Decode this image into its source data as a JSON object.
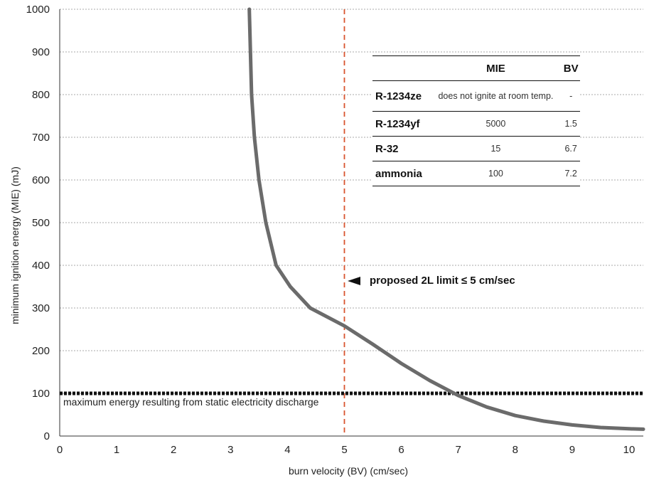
{
  "chart_data": {
    "type": "line",
    "title": "",
    "xlabel": "burn velocity (BV) (cm/sec)",
    "ylabel": "minimum ignition energy (MIE) (mJ)",
    "xlim": [
      0,
      10.25
    ],
    "ylim": [
      0,
      1000
    ],
    "x_ticks": [
      "0",
      "1",
      "2",
      "3",
      "4",
      "5",
      "6",
      "7",
      "8",
      "9",
      "10"
    ],
    "y_ticks": [
      "0",
      "100",
      "200",
      "300",
      "400",
      "500",
      "600",
      "700",
      "800",
      "900",
      "1000"
    ],
    "grid": "horizontal dotted",
    "series": [
      {
        "color": "#6b6b6b",
        "points": [
          [
            3.33,
            1000
          ],
          [
            3.35,
            900
          ],
          [
            3.37,
            800
          ],
          [
            3.42,
            700
          ],
          [
            3.5,
            600
          ],
          [
            3.62,
            500
          ],
          [
            3.8,
            400
          ],
          [
            4.05,
            350
          ],
          [
            4.4,
            300
          ],
          [
            5.0,
            258
          ],
          [
            5.5,
            215
          ],
          [
            6.0,
            170
          ],
          [
            6.5,
            130
          ],
          [
            7.0,
            95
          ],
          [
            7.5,
            68
          ],
          [
            8.0,
            48
          ],
          [
            8.5,
            35
          ],
          [
            9.0,
            26
          ],
          [
            9.5,
            20
          ],
          [
            10.0,
            17
          ],
          [
            10.25,
            16
          ]
        ]
      }
    ],
    "reference_lines": {
      "vertical_x": 5,
      "vertical_color": "#d9542f",
      "horizontal_y": 100,
      "horizontal_color": "#111111"
    },
    "annotations": {
      "limit_label": "proposed 2L limit ≤ 5 cm/sec",
      "static_label": "maximum energy resulting from static electricity discharge"
    }
  },
  "table": {
    "headers": [
      "",
      "MIE",
      "BV"
    ],
    "rows": [
      {
        "name": "R-1234ze",
        "mie": "does not ignite at room temp.",
        "bv": "-"
      },
      {
        "name": "R-1234yf",
        "mie": "5000",
        "bv": "1.5"
      },
      {
        "name": "R-32",
        "mie": "15",
        "bv": "6.7"
      },
      {
        "name": "ammonia",
        "mie": "100",
        "bv": "7.2"
      }
    ]
  }
}
